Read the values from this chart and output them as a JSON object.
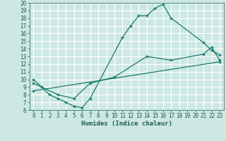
{
  "title": "",
  "xlabel": "Humidex (Indice chaleur)",
  "xlim": [
    -0.5,
    23.5
  ],
  "ylim": [
    6,
    20
  ],
  "xticks": [
    0,
    1,
    2,
    3,
    4,
    5,
    6,
    7,
    8,
    9,
    10,
    11,
    12,
    13,
    14,
    15,
    16,
    17,
    18,
    19,
    20,
    21,
    22,
    23
  ],
  "yticks": [
    6,
    7,
    8,
    9,
    10,
    11,
    12,
    13,
    14,
    15,
    16,
    17,
    18,
    19,
    20
  ],
  "background_color": "#cde8e3",
  "grid_color": "#ffffff",
  "line_color": "#1a7a6e",
  "series": [
    {
      "x": [
        0,
        1,
        2,
        3,
        4,
        5,
        6,
        7,
        11,
        12,
        13,
        14,
        15,
        16,
        17,
        21,
        22,
        23
      ],
      "y": [
        10,
        9,
        8,
        7.5,
        7,
        6.5,
        6.3,
        7.5,
        15.5,
        17,
        18.3,
        18.3,
        19.3,
        19.8,
        18,
        14.8,
        13.8,
        13.2
      ]
    },
    {
      "x": [
        0,
        3,
        5,
        7,
        10,
        14,
        17,
        21,
        22,
        23
      ],
      "y": [
        9.5,
        8,
        7.5,
        9.5,
        10.3,
        13,
        12.5,
        13.3,
        14.2,
        12.5
      ]
    },
    {
      "x": [
        0,
        23
      ],
      "y": [
        8.5,
        12.3
      ]
    }
  ],
  "tick_fontsize": 5.5,
  "xlabel_fontsize": 6.5
}
